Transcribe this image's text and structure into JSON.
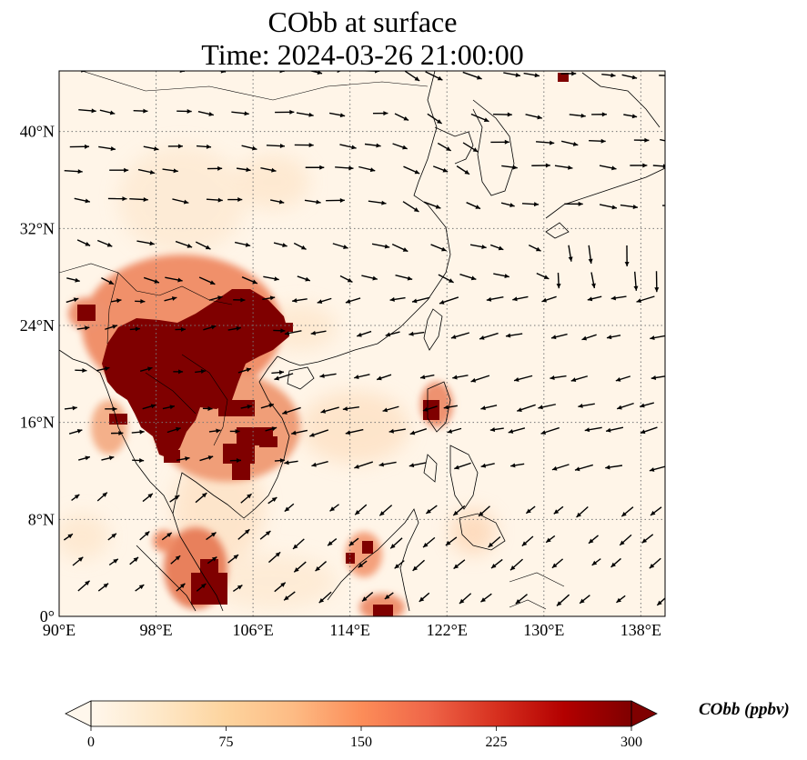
{
  "title": {
    "line1": "CObb at surface",
    "line2": "Time: 2024-03-26 21:00:00"
  },
  "axes": {
    "x_ticks": [
      "90°E",
      "98°E",
      "106°E",
      "114°E",
      "122°E",
      "130°E",
      "138°E"
    ],
    "y_ticks": [
      "0°",
      "8°N",
      "16°N",
      "24°N",
      "32°N",
      "40°N"
    ],
    "lon_range": [
      90,
      140
    ],
    "lat_range": [
      0,
      45
    ],
    "grid": "dotted"
  },
  "colorbar": {
    "label": "CObb (ppbv)",
    "ticks": [
      "0",
      "75",
      "150",
      "225",
      "300"
    ],
    "range": [
      0,
      300
    ],
    "extend": "both",
    "colormap": "OrRd",
    "stops": [
      "#fff7ec",
      "#fee8c8",
      "#fdd49e",
      "#fdbb84",
      "#fc8d59",
      "#ef6548",
      "#d7301f",
      "#b30000",
      "#7f0000"
    ]
  },
  "colors": {
    "background": "#fff5e8",
    "coastline": "#000000",
    "extreme_plume": "#7f0000"
  }
}
